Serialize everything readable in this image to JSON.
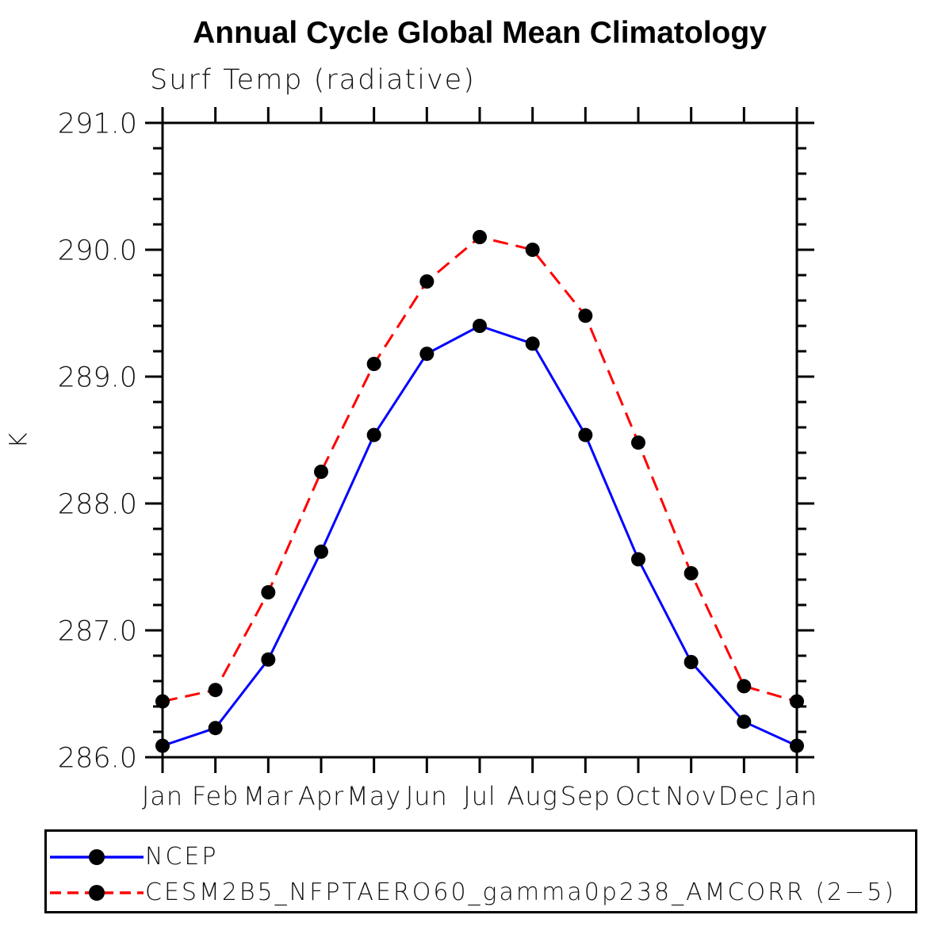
{
  "header": {
    "title": "Annual Cycle Global Mean Climatology",
    "subtitle": "Surf Temp (radiative)"
  },
  "chart_data": {
    "type": "line",
    "title": "Annual Cycle Global Mean Climatology",
    "subtitle": "Surf Temp (radiative)",
    "xlabel": "",
    "ylabel": "K",
    "categories": [
      "Jan",
      "Feb",
      "Mar",
      "Apr",
      "May",
      "Jun",
      "Jul",
      "Aug",
      "Sep",
      "Oct",
      "Nov",
      "Dec",
      "Jan"
    ],
    "ylim": [
      286.0,
      291.0
    ],
    "y_major_ticks": [
      286.0,
      287.0,
      288.0,
      289.0,
      290.0,
      291.0
    ],
    "y_tick_labels": [
      "286.0",
      "287.0",
      "288.0",
      "289.0",
      "290.0",
      "291.0"
    ],
    "y_minor_step": 0.2,
    "grid": false,
    "frame_color": "#000000",
    "marker": {
      "shape": "circle",
      "color": "#000000",
      "radius": 9
    },
    "legend_position": "bottom-box",
    "series": [
      {
        "name": "NCEP",
        "color": "#0000ff",
        "line_style": "solid",
        "values": [
          286.09,
          286.23,
          286.77,
          287.62,
          288.54,
          289.18,
          289.4,
          289.26,
          288.54,
          287.56,
          286.75,
          286.28,
          286.09
        ]
      },
      {
        "name": "CESM2B5_NFPTAERO60_gamma0p238_AMCORR (2−5)",
        "color": "#ff0000",
        "line_style": "dashed",
        "values": [
          286.44,
          286.53,
          287.3,
          288.25,
          289.1,
          289.75,
          290.1,
          290.0,
          289.48,
          288.48,
          287.45,
          286.56,
          286.44
        ]
      }
    ]
  }
}
